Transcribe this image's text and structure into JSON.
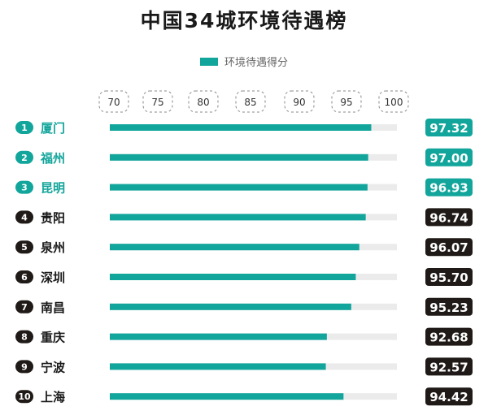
{
  "title": "中国34城环境待遇榜",
  "legend": {
    "label": "环境待遇得分",
    "color": "#12a59b"
  },
  "colors": {
    "bar": "#12a59b",
    "track": "#ebebeb",
    "top_badge": "#12a59b",
    "other_badge": "#1f1a17",
    "top_city_text": "#12a59b",
    "other_city_text": "#1a1a1a"
  },
  "chart_data": {
    "type": "bar",
    "orientation": "horizontal",
    "title": "中国34城环境待遇榜",
    "series": [
      {
        "name": "环境待遇得分"
      }
    ],
    "xlim": [
      70,
      100
    ],
    "ticks": [
      "70",
      "75",
      "80",
      "85",
      "90",
      "95",
      "100"
    ],
    "rows": [
      {
        "rank": "1",
        "city": "厦门",
        "value": 97.32,
        "value_label": "97.32",
        "highlight": true
      },
      {
        "rank": "2",
        "city": "福州",
        "value": 97.0,
        "value_label": "97.00",
        "highlight": true
      },
      {
        "rank": "3",
        "city": "昆明",
        "value": 96.93,
        "value_label": "96.93",
        "highlight": true
      },
      {
        "rank": "4",
        "city": "贵阳",
        "value": 96.74,
        "value_label": "96.74",
        "highlight": false
      },
      {
        "rank": "5",
        "city": "泉州",
        "value": 96.07,
        "value_label": "96.07",
        "highlight": false
      },
      {
        "rank": "6",
        "city": "深圳",
        "value": 95.7,
        "value_label": "95.70",
        "highlight": false
      },
      {
        "rank": "7",
        "city": "南昌",
        "value": 95.23,
        "value_label": "95.23",
        "highlight": false
      },
      {
        "rank": "8",
        "city": "重庆",
        "value": 92.68,
        "value_label": "92.68",
        "highlight": false
      },
      {
        "rank": "9",
        "city": "宁波",
        "value": 92.57,
        "value_label": "92.57",
        "highlight": false
      },
      {
        "rank": "10",
        "city": "上海",
        "value": 94.42,
        "value_label": "94.42",
        "highlight": false
      }
    ]
  }
}
